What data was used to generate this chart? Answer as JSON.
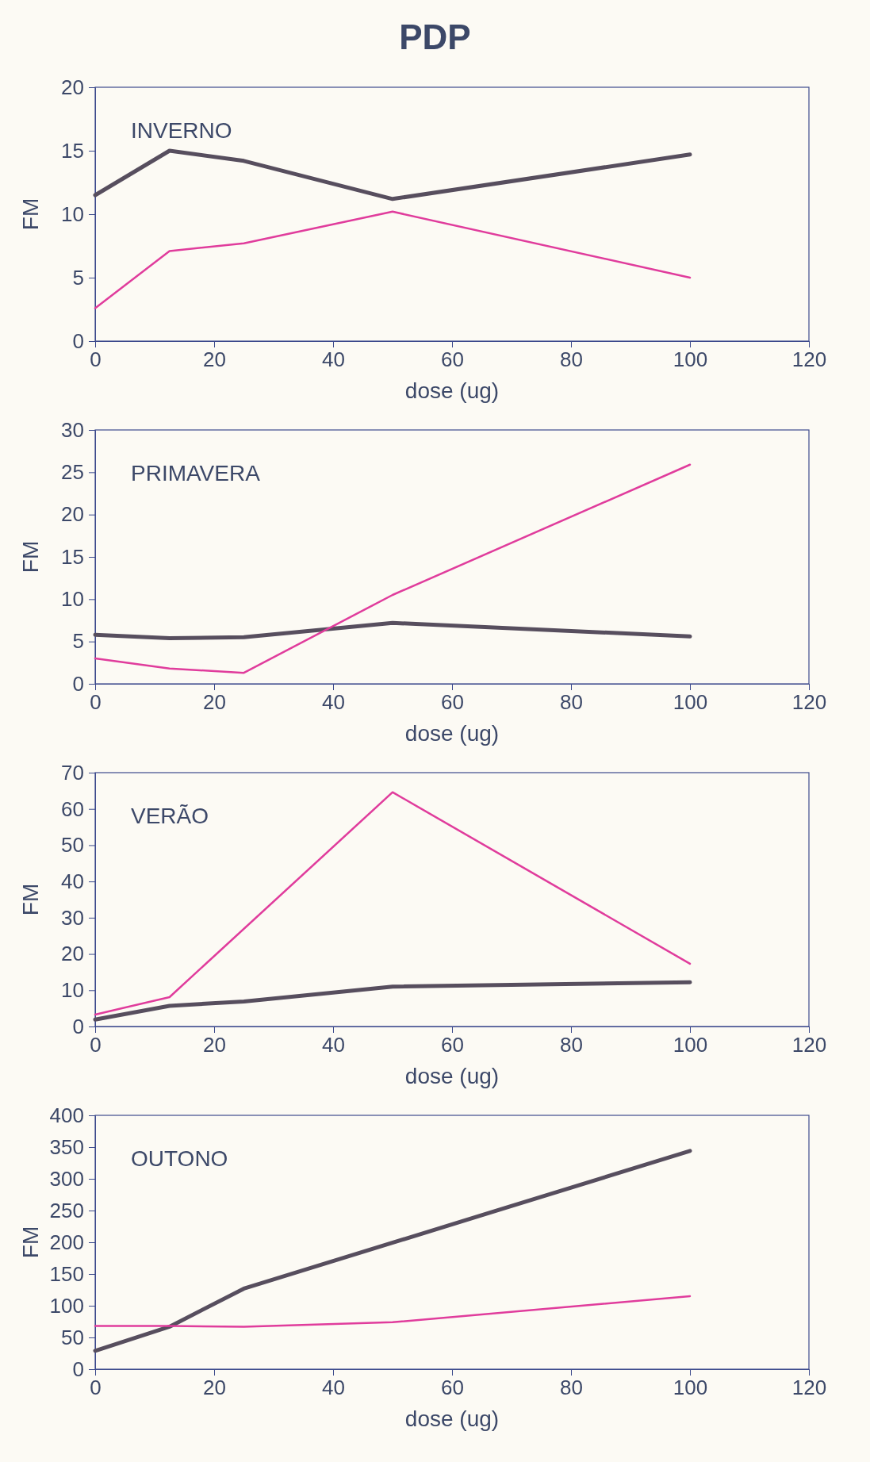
{
  "chart_data": [
    {
      "type": "line",
      "title": "INVERNO",
      "xlabel": "dose (ug)",
      "ylabel": "FM",
      "annotations": [
        "PDP"
      ],
      "xlim": [
        0,
        120
      ],
      "xticks": [
        0,
        20,
        40,
        60,
        80,
        100,
        120
      ],
      "ylim": [
        0,
        20
      ],
      "yticks": [
        0,
        5,
        10,
        15,
        20
      ],
      "grid": false,
      "series": [
        {
          "color": "#574e5e",
          "x": [
            0,
            12.5,
            25,
            50,
            100
          ],
          "values": [
            11.5,
            15,
            14.2,
            11.2,
            14.7
          ]
        },
        {
          "color": "#e03c9c",
          "x": [
            0,
            12.5,
            25,
            50,
            100
          ],
          "values": [
            2.6,
            7.1,
            7.7,
            10.2,
            5
          ]
        }
      ]
    },
    {
      "type": "line",
      "title": "PRIMAVERA",
      "xlabel": "dose (ug)",
      "ylabel": "FM",
      "xlim": [
        0,
        120
      ],
      "xticks": [
        0,
        20,
        40,
        60,
        80,
        100,
        120
      ],
      "ylim": [
        0,
        30
      ],
      "yticks": [
        0,
        5,
        10,
        15,
        20,
        25,
        30
      ],
      "grid": false,
      "series": [
        {
          "color": "#574e5e",
          "x": [
            0,
            12.5,
            25,
            50,
            100
          ],
          "values": [
            5.8,
            5.4,
            5.5,
            7.2,
            5.6
          ]
        },
        {
          "color": "#e03c9c",
          "x": [
            0,
            12.5,
            25,
            50,
            100
          ],
          "values": [
            3,
            1.8,
            1.3,
            10.5,
            25.9
          ]
        }
      ]
    },
    {
      "type": "line",
      "title": "VERÃO",
      "xlabel": "dose (ug)",
      "ylabel": "FM",
      "xlim": [
        0,
        120
      ],
      "xticks": [
        0,
        20,
        40,
        60,
        80,
        100,
        120
      ],
      "ylim": [
        0,
        70
      ],
      "yticks": [
        0,
        10,
        20,
        30,
        40,
        50,
        60,
        70
      ],
      "grid": false,
      "series": [
        {
          "color": "#574e5e",
          "x": [
            0,
            12.5,
            25,
            50,
            100
          ],
          "values": [
            1.9,
            5.7,
            6.9,
            11,
            12.2
          ]
        },
        {
          "color": "#e03c9c",
          "x": [
            0,
            12.5,
            50,
            100
          ],
          "values": [
            3.3,
            8.1,
            64.6,
            17.3
          ]
        }
      ]
    },
    {
      "type": "line",
      "title": "OUTONO",
      "xlabel": "dose (ug)",
      "ylabel": "FM",
      "xlim": [
        0,
        120
      ],
      "xticks": [
        0,
        20,
        40,
        60,
        80,
        100,
        120
      ],
      "ylim": [
        0,
        400
      ],
      "yticks": [
        0,
        50,
        100,
        150,
        200,
        250,
        300,
        350,
        400
      ],
      "grid": false,
      "series": [
        {
          "color": "#574e5e",
          "x": [
            0,
            12.5,
            25,
            100
          ],
          "values": [
            29,
            67,
            127,
            344
          ]
        },
        {
          "color": "#e03c9c",
          "x": [
            0,
            12.5,
            25,
            50,
            100
          ],
          "values": [
            68,
            68,
            67,
            74,
            115
          ]
        }
      ]
    }
  ]
}
